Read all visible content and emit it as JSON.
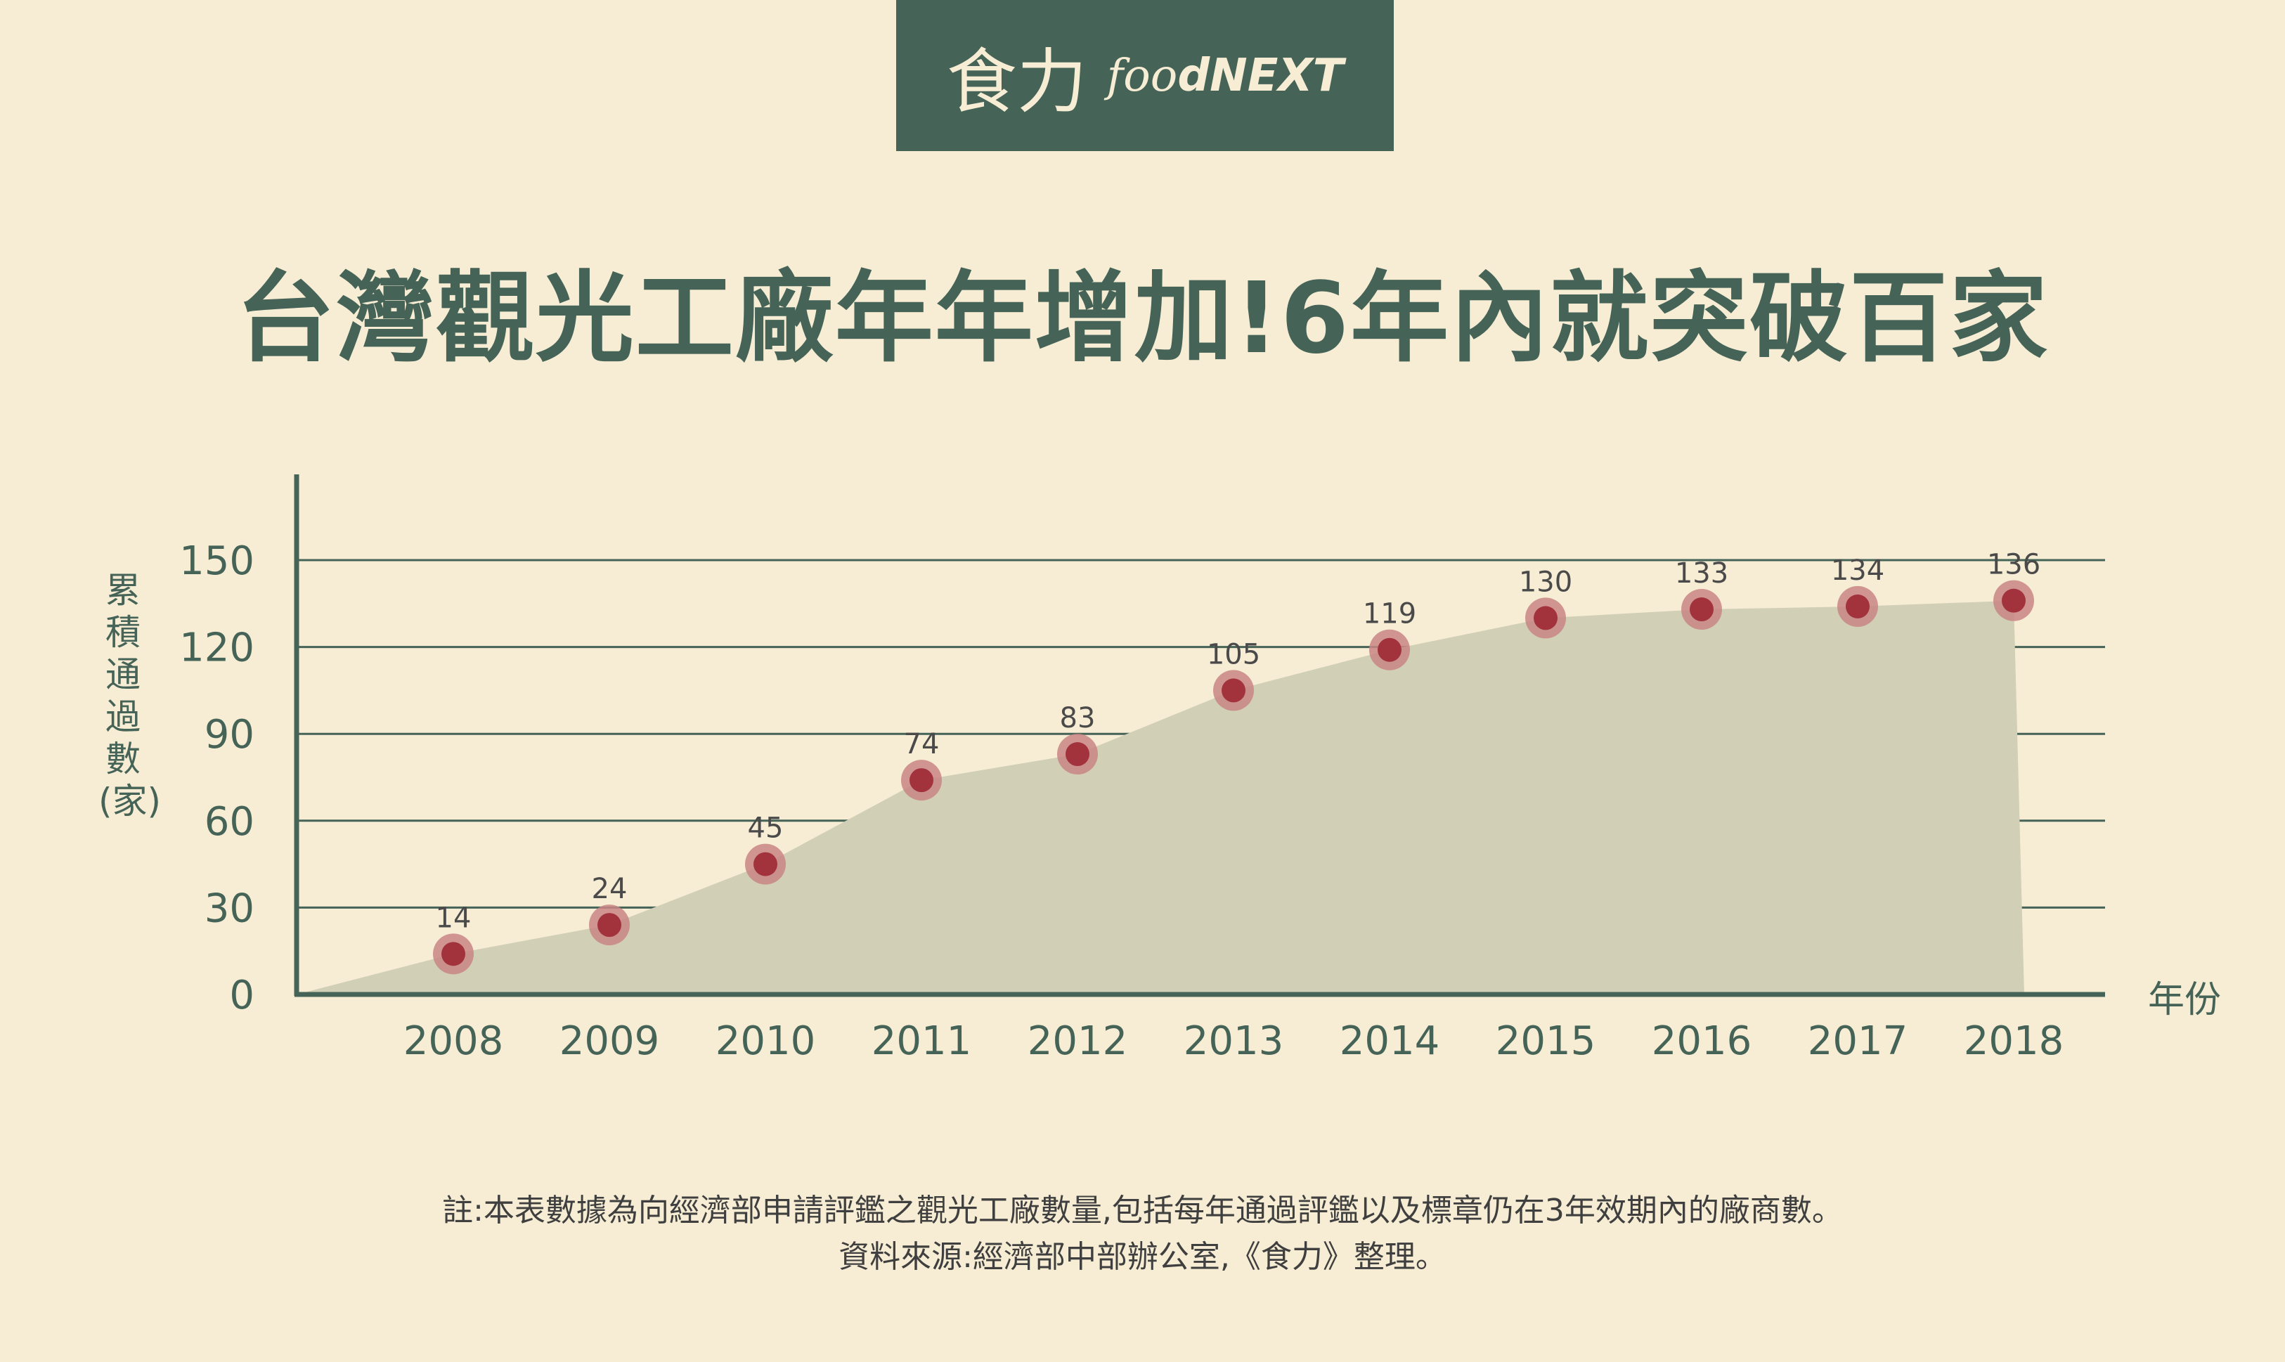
{
  "brand": {
    "chinese": "食力",
    "english_prefix": "foo",
    "english_suffix": "dNEXT"
  },
  "title": "台灣觀光工廠年年增加!6年內就突破百家",
  "colors": {
    "background": "#f7edd4",
    "brand": "#456357",
    "area": "#d1cfb6",
    "point": "#a2323c",
    "point_halo": "#c98585"
  },
  "chart_data": {
    "type": "area",
    "categories": [
      "2008",
      "2009",
      "2010",
      "2011",
      "2012",
      "2013",
      "2014",
      "2015",
      "2016",
      "2017",
      "2018"
    ],
    "values": [
      14,
      24,
      45,
      74,
      83,
      105,
      119,
      130,
      133,
      134,
      136
    ],
    "ylabel": "累積通過數(家)",
    "xlabel": "年份",
    "yticks": [
      0,
      30,
      60,
      90,
      120,
      150
    ],
    "ylim": [
      0,
      150
    ],
    "grid": true,
    "markers": true,
    "data_labels": true
  },
  "notes": [
    "註:本表數據為向經濟部申請評鑑之觀光工廠數量,包括每年通過評鑑以及標章仍在3年效期內的廠商數。",
    "資料來源:經濟部中部辦公室,《食力》整理。"
  ]
}
